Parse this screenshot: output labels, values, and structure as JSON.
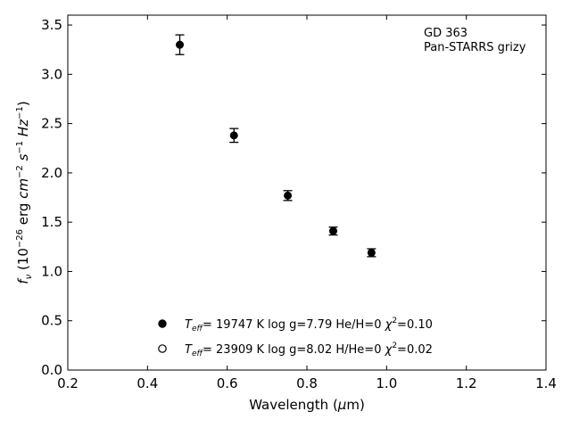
{
  "chart_data": {
    "type": "scatter",
    "title": "",
    "xlabel": "Wavelength (μm)",
    "ylabel": "f_ν (10^-26 erg cm^-2 s^-1 Hz^-1)",
    "xlim": [
      0.2,
      1.4
    ],
    "ylim": [
      0.0,
      3.6
    ],
    "x_ticks": [
      0.2,
      0.4,
      0.6,
      0.8,
      1.0,
      1.2,
      1.4
    ],
    "x_tick_labels": [
      "0.2",
      "0.4",
      "0.6",
      "0.8",
      "1.0",
      "1.2",
      "1.4"
    ],
    "y_ticks": [
      0.0,
      0.5,
      1.0,
      1.5,
      2.0,
      2.5,
      3.0,
      3.5
    ],
    "y_tick_labels": [
      "0.0",
      "0.5",
      "1.0",
      "1.5",
      "2.0",
      "2.5",
      "3.0",
      "3.5"
    ],
    "grid": false,
    "annotation_lines": [
      "GD 363",
      "Pan-STARRS grizy"
    ],
    "annotation_position": "top-right",
    "legend_position": "lower-center",
    "series": [
      {
        "marker": "filled-circle",
        "points": [
          {
            "x": 0.481,
            "y": 3.3,
            "yerr": 0.1
          },
          {
            "x": 0.617,
            "y": 2.38,
            "yerr": 0.07
          },
          {
            "x": 0.752,
            "y": 1.77,
            "yerr": 0.05
          },
          {
            "x": 0.866,
            "y": 1.41,
            "yerr": 0.04
          },
          {
            "x": 0.962,
            "y": 1.19,
            "yerr": 0.04
          }
        ]
      }
    ],
    "legend": [
      {
        "marker": "filled-circle",
        "teff": "19747",
        "logg": "7.79",
        "comp": "He/H=0",
        "chi2": "0.10"
      },
      {
        "marker": "open-circle",
        "teff": "23909",
        "logg": "8.02",
        "comp": "H/He=0",
        "chi2": "0.02"
      }
    ]
  }
}
